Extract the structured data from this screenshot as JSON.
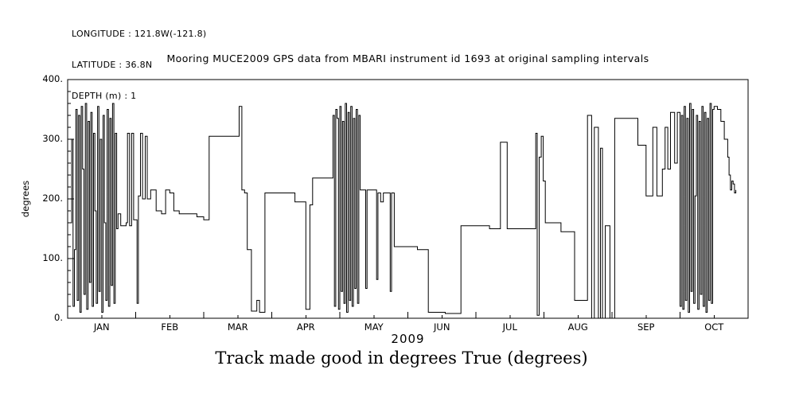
{
  "meta": {
    "lines": [
      "LONGITUDE : 121.8W(-121.8)",
      "LATITUDE : 36.8N",
      "DEPTH (m) : 1"
    ]
  },
  "chart_data": {
    "type": "line",
    "step": true,
    "title": "Mooring MUCE2009 GPS data from MBARI instrument id 1693 at original sampling intervals",
    "ylabel": "degrees",
    "xlabel": "2009",
    "caption": "Track made good in degrees True (degrees)",
    "line_color": "#000000",
    "background": "#ffffff",
    "x_axis": {
      "unit": "fractional month of 2009 (0 = 1 Jan)",
      "lim": [
        0,
        10
      ],
      "tick_labels": [
        "JAN",
        "FEB",
        "MAR",
        "APR",
        "MAY",
        "JUN",
        "JUL",
        "AUG",
        "SEP",
        "OCT"
      ],
      "major_ticks": [
        0,
        1,
        2,
        3,
        4,
        5,
        6,
        7,
        8,
        9,
        10
      ],
      "minor_tick_step": 0.5
    },
    "y_axis": {
      "lim": [
        0,
        400
      ],
      "ticks": [
        0,
        100,
        200,
        300,
        400
      ],
      "tick_labels": [
        "0.",
        "100.",
        "200.",
        "300.",
        "400."
      ],
      "minor_tick_step": 20
    },
    "points": [
      [
        0.04,
        160
      ],
      [
        0.06,
        300
      ],
      [
        0.08,
        20
      ],
      [
        0.1,
        115
      ],
      [
        0.12,
        350
      ],
      [
        0.14,
        30
      ],
      [
        0.16,
        340
      ],
      [
        0.18,
        10
      ],
      [
        0.2,
        355
      ],
      [
        0.22,
        250
      ],
      [
        0.24,
        40
      ],
      [
        0.26,
        360
      ],
      [
        0.28,
        15
      ],
      [
        0.3,
        330
      ],
      [
        0.32,
        60
      ],
      [
        0.34,
        345
      ],
      [
        0.36,
        20
      ],
      [
        0.38,
        310
      ],
      [
        0.4,
        180
      ],
      [
        0.42,
        25
      ],
      [
        0.44,
        355
      ],
      [
        0.46,
        45
      ],
      [
        0.48,
        300
      ],
      [
        0.5,
        10
      ],
      [
        0.52,
        340
      ],
      [
        0.54,
        160
      ],
      [
        0.56,
        30
      ],
      [
        0.58,
        350
      ],
      [
        0.6,
        20
      ],
      [
        0.62,
        335
      ],
      [
        0.64,
        55
      ],
      [
        0.66,
        360
      ],
      [
        0.68,
        25
      ],
      [
        0.7,
        310
      ],
      [
        0.72,
        150
      ],
      [
        0.74,
        175
      ],
      [
        0.78,
        155
      ],
      [
        0.86,
        160
      ],
      [
        0.88,
        310
      ],
      [
        0.91,
        155
      ],
      [
        0.94,
        310
      ],
      [
        0.97,
        165
      ],
      [
        1.02,
        25
      ],
      [
        1.04,
        205
      ],
      [
        1.07,
        310
      ],
      [
        1.1,
        200
      ],
      [
        1.14,
        305
      ],
      [
        1.17,
        200
      ],
      [
        1.22,
        215
      ],
      [
        1.3,
        180
      ],
      [
        1.38,
        175
      ],
      [
        1.44,
        215
      ],
      [
        1.5,
        210
      ],
      [
        1.56,
        180
      ],
      [
        1.64,
        175
      ],
      [
        1.8,
        175
      ],
      [
        1.9,
        170
      ],
      [
        2.0,
        165
      ],
      [
        2.08,
        305
      ],
      [
        2.5,
        305
      ],
      [
        2.52,
        355
      ],
      [
        2.56,
        215
      ],
      [
        2.6,
        210
      ],
      [
        2.64,
        115
      ],
      [
        2.7,
        12
      ],
      [
        2.78,
        30
      ],
      [
        2.82,
        10
      ],
      [
        2.9,
        210
      ],
      [
        3.3,
        210
      ],
      [
        3.34,
        195
      ],
      [
        3.48,
        195
      ],
      [
        3.5,
        15
      ],
      [
        3.54,
        15
      ],
      [
        3.56,
        190
      ],
      [
        3.6,
        235
      ],
      [
        3.88,
        235
      ],
      [
        3.9,
        340
      ],
      [
        3.92,
        20
      ],
      [
        3.94,
        350
      ],
      [
        3.96,
        335
      ],
      [
        3.98,
        15
      ],
      [
        4.0,
        355
      ],
      [
        4.02,
        45
      ],
      [
        4.04,
        330
      ],
      [
        4.06,
        25
      ],
      [
        4.08,
        360
      ],
      [
        4.1,
        10
      ],
      [
        4.12,
        345
      ],
      [
        4.14,
        30
      ],
      [
        4.16,
        355
      ],
      [
        4.18,
        20
      ],
      [
        4.2,
        335
      ],
      [
        4.22,
        50
      ],
      [
        4.24,
        350
      ],
      [
        4.26,
        25
      ],
      [
        4.28,
        340
      ],
      [
        4.3,
        215
      ],
      [
        4.36,
        215
      ],
      [
        4.38,
        50
      ],
      [
        4.4,
        215
      ],
      [
        4.52,
        215
      ],
      [
        4.54,
        65
      ],
      [
        4.56,
        210
      ],
      [
        4.6,
        195
      ],
      [
        4.64,
        210
      ],
      [
        4.72,
        210
      ],
      [
        4.74,
        45
      ],
      [
        4.76,
        210
      ],
      [
        4.8,
        120
      ],
      [
        5.1,
        120
      ],
      [
        5.14,
        115
      ],
      [
        5.28,
        115
      ],
      [
        5.3,
        10
      ],
      [
        5.55,
        8
      ],
      [
        5.75,
        8
      ],
      [
        5.78,
        155
      ],
      [
        6.0,
        155
      ],
      [
        6.2,
        150
      ],
      [
        6.3,
        150
      ],
      [
        6.36,
        295
      ],
      [
        6.44,
        295
      ],
      [
        6.46,
        150
      ],
      [
        6.6,
        150
      ],
      [
        6.85,
        150
      ],
      [
        6.88,
        310
      ],
      [
        6.9,
        5
      ],
      [
        6.93,
        270
      ],
      [
        6.96,
        305
      ],
      [
        6.99,
        230
      ],
      [
        7.02,
        160
      ],
      [
        7.2,
        160
      ],
      [
        7.25,
        145
      ],
      [
        7.4,
        145
      ],
      [
        7.45,
        30
      ],
      [
        7.62,
        30
      ],
      [
        7.64,
        340
      ],
      [
        7.68,
        340
      ],
      [
        7.7,
        0
      ],
      [
        7.74,
        320
      ],
      [
        7.78,
        320
      ],
      [
        7.8,
        0
      ],
      [
        7.83,
        285
      ],
      [
        7.86,
        0
      ],
      [
        7.9,
        155
      ],
      [
        7.95,
        155
      ],
      [
        7.97,
        0
      ],
      [
        8.04,
        335
      ],
      [
        8.34,
        335
      ],
      [
        8.38,
        290
      ],
      [
        8.48,
        290
      ],
      [
        8.5,
        205
      ],
      [
        8.58,
        205
      ],
      [
        8.6,
        320
      ],
      [
        8.64,
        320
      ],
      [
        8.66,
        205
      ],
      [
        8.72,
        205
      ],
      [
        8.74,
        250
      ],
      [
        8.78,
        320
      ],
      [
        8.82,
        250
      ],
      [
        8.86,
        345
      ],
      [
        8.92,
        260
      ],
      [
        8.96,
        345
      ],
      [
        9.0,
        20
      ],
      [
        9.02,
        340
      ],
      [
        9.04,
        15
      ],
      [
        9.06,
        355
      ],
      [
        9.08,
        30
      ],
      [
        9.1,
        335
      ],
      [
        9.12,
        10
      ],
      [
        9.14,
        360
      ],
      [
        9.16,
        45
      ],
      [
        9.18,
        350
      ],
      [
        9.2,
        25
      ],
      [
        9.22,
        205
      ],
      [
        9.24,
        340
      ],
      [
        9.26,
        15
      ],
      [
        9.28,
        330
      ],
      [
        9.3,
        40
      ],
      [
        9.32,
        355
      ],
      [
        9.34,
        20
      ],
      [
        9.36,
        345
      ],
      [
        9.38,
        10
      ],
      [
        9.4,
        335
      ],
      [
        9.42,
        30
      ],
      [
        9.44,
        360
      ],
      [
        9.46,
        25
      ],
      [
        9.48,
        350
      ],
      [
        9.5,
        355
      ],
      [
        9.55,
        350
      ],
      [
        9.6,
        330
      ],
      [
        9.65,
        300
      ],
      [
        9.7,
        270
      ],
      [
        9.72,
        240
      ],
      [
        9.74,
        215
      ],
      [
        9.76,
        230
      ],
      [
        9.78,
        225
      ],
      [
        9.8,
        210
      ],
      [
        9.82,
        215
      ]
    ]
  }
}
